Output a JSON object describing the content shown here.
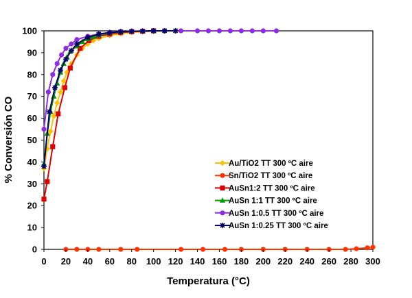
{
  "chart_data": {
    "type": "line",
    "xlabel": "Temperatura (°C)",
    "ylabel": "% Conversión CO",
    "xlim": [
      0,
      300
    ],
    "ylim": [
      0,
      100
    ],
    "xticks": [
      0,
      20,
      40,
      60,
      80,
      100,
      120,
      140,
      160,
      180,
      200,
      220,
      240,
      260,
      280,
      300
    ],
    "yticks": [
      0,
      10,
      20,
      30,
      40,
      50,
      60,
      70,
      80,
      90,
      100
    ],
    "grid": false,
    "legend_position": "bottom-right",
    "series": [
      {
        "name": "Au/TiO2 TT 300 ºC aire",
        "color": "#FFC000",
        "marker": "diamond",
        "x": [
          0,
          3,
          6,
          9,
          12,
          15,
          18,
          21,
          25,
          30,
          35,
          40,
          45,
          50,
          60,
          70,
          80,
          90,
          100,
          110,
          120
        ],
        "y": [
          37,
          46,
          54,
          61,
          67,
          72,
          77,
          81,
          85,
          89,
          92,
          94,
          95.5,
          96.5,
          97.8,
          98.7,
          99.2,
          99.6,
          99.8,
          99.9,
          100
        ]
      },
      {
        "name": "Sn/TiO2 TT 300 ºC aire",
        "color": "#FF3300",
        "marker": "circle",
        "x": [
          20,
          30,
          40,
          50,
          70,
          85,
          125,
          145,
          165,
          180,
          200,
          220,
          240,
          260,
          275,
          285,
          295,
          300
        ],
        "y": [
          0,
          0,
          0,
          0,
          0,
          0,
          0,
          0,
          0,
          0,
          0,
          0,
          0,
          0,
          0,
          0.3,
          0.7,
          1
        ]
      },
      {
        "name": "AuSn1:2 TT 300 ºC aire",
        "color": "#DD0000",
        "marker": "square",
        "x": [
          0,
          3,
          8,
          13,
          19,
          24,
          33,
          41,
          50,
          60,
          70,
          80,
          90,
          100
        ],
        "y": [
          23,
          31,
          47,
          62,
          74,
          83,
          92,
          95.5,
          97.5,
          98.5,
          99.2,
          99.6,
          99.8,
          100
        ]
      },
      {
        "name": "AuSn 1:1 TT 300 ºC aire",
        "color": "#009900",
        "marker": "triangle",
        "x": [
          0,
          3,
          6,
          9,
          12,
          15,
          18,
          21,
          24,
          30,
          35,
          40,
          45,
          50,
          60,
          70,
          80,
          90,
          100
        ],
        "y": [
          39,
          53,
          63,
          70,
          76,
          81,
          85,
          88,
          90.5,
          93,
          95,
          96.3,
          97.3,
          98,
          99,
          99.5,
          99.8,
          99.9,
          100
        ]
      },
      {
        "name": "AuSn 1:0.5 TT 300 ºC aire",
        "color": "#8E2BE2",
        "marker": "circle",
        "x": [
          0,
          4,
          8,
          12,
          16,
          20,
          25,
          30,
          40,
          50,
          60,
          70,
          80,
          90,
          100,
          110,
          125,
          140,
          150,
          160,
          170,
          180,
          190,
          200,
          212
        ],
        "y": [
          55,
          72,
          80,
          85,
          89,
          92,
          94,
          96,
          97.5,
          98.5,
          99.2,
          99.6,
          99.8,
          99.9,
          100,
          100,
          100,
          100,
          100,
          100,
          100,
          100,
          100,
          100,
          100
        ]
      },
      {
        "name": "AuSn 1:0.25 TT 300 ºC aire",
        "color": "#000066",
        "marker": "star",
        "x": [
          0,
          5,
          10,
          15,
          20,
          25,
          30,
          40,
          50,
          60,
          70,
          80,
          90,
          100,
          110,
          120
        ],
        "y": [
          38,
          63,
          74,
          82,
          87,
          91,
          94,
          97,
          98.5,
          99.2,
          99.6,
          99.8,
          99.9,
          100,
          100,
          100
        ]
      }
    ]
  }
}
